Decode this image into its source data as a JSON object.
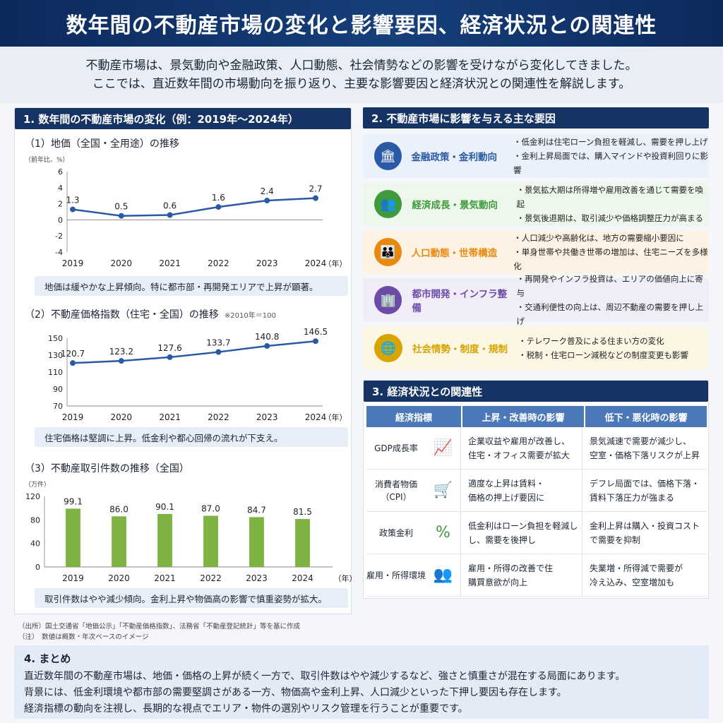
{
  "header": {
    "title": "数年間の不動産市場の変化と影響要因、経済状況との関連性",
    "intro_line1": "不動産市場は、景気動向や金融政策、人口動態、社会情勢などの影響を受けながら変化してきました。",
    "intro_line2": "ここでは、直近数年間の市場動向を振り返り、主要な影響要因と経済状況との関連性を解説します。"
  },
  "section1": {
    "heading": "1. 数年間の不動産市場の変化（例：2019年〜2024年）",
    "chart1": {
      "title": "（1）地価（全国・全用途）の推移",
      "unit": "（前年比、%）",
      "caption": "地価は緩やかな上昇傾向。特に都市部・再開発エリアで上昇が顕著。"
    },
    "chart2": {
      "title": "（2）不動産価格指数（住宅・全国）の推移",
      "note": "※2010年＝100",
      "caption": "住宅価格は堅調に上昇。低金利や都心回帰の流れが下支え。"
    },
    "chart3": {
      "title": "（3）不動産取引件数の推移（全国）",
      "unit": "（万件）",
      "caption": "取引件数はやや減少傾向。金利上昇や物価高の影響で慎重姿勢が拡大。"
    },
    "year_suffix": "（年）"
  },
  "chart_data": [
    {
      "type": "line",
      "title": "（1）地価（全国・全用途）の推移",
      "ylabel": "（前年比、%）",
      "xlabel": "（年）",
      "x": [
        "2019",
        "2020",
        "2021",
        "2022",
        "2023",
        "2024"
      ],
      "values": [
        1.3,
        0.5,
        0.6,
        1.6,
        2.4,
        2.7
      ],
      "ylim": [
        -4,
        6
      ],
      "yticks": [
        -4,
        -2,
        0,
        2,
        4,
        6
      ],
      "color": "#2a5aa4"
    },
    {
      "type": "line",
      "title": "（2）不動産価格指数（住宅・全国）の推移",
      "xlabel": "（年）",
      "x": [
        "2019",
        "2020",
        "2021",
        "2022",
        "2023",
        "2024"
      ],
      "values": [
        120.7,
        123.2,
        127.6,
        133.7,
        140.8,
        146.5
      ],
      "ylim": [
        70,
        150
      ],
      "yticks": [
        70,
        90,
        110,
        130,
        150
      ],
      "color": "#2a5aa4"
    },
    {
      "type": "bar",
      "title": "（3）不動産取引件数の推移（全国）",
      "ylabel": "（万件）",
      "xlabel": "（年）",
      "categories": [
        "2019",
        "2020",
        "2021",
        "2022",
        "2023",
        "2024"
      ],
      "values": [
        99.1,
        86.0,
        90.1,
        87.0,
        84.7,
        81.5
      ],
      "ylim": [
        0,
        120
      ],
      "yticks": [
        0,
        40,
        80,
        120
      ],
      "color": "#7cb342"
    }
  ],
  "section2": {
    "heading": "2. 不動産市場に影響を与える主な要因",
    "factors": [
      {
        "name": "金融政策・金利動向",
        "icon": "bank-icon",
        "glyph": "🏛",
        "color": "#2a5aa4",
        "bg": "#eaf1fa",
        "d1": "・低金利は住宅ローン負担を軽減し、需要を押し上げ",
        "d2": "・金利上昇局面では、購入マインドや投資利回りに影響"
      },
      {
        "name": "経済成長・景気動向",
        "icon": "people-group-icon",
        "glyph": "👥",
        "color": "#3d9a3d",
        "bg": "#eef7ec",
        "d1": "・景気拡大期は所得増や雇用改善を通じて需要を喚起",
        "d2": "・景気後退期は、取引減少や価格調整圧力が高まる"
      },
      {
        "name": "人口動態・世帯構造",
        "icon": "population-icon",
        "glyph": "👪",
        "color": "#e8890c",
        "bg": "#fdf2e4",
        "d1": "・人口減少や高齢化は、地方の需要縮小要因に",
        "d2": "・単身世帯や共働き世帯の増加は、住宅ニーズを多様化"
      },
      {
        "name": "都市開発・インフラ整備",
        "icon": "buildings-icon",
        "glyph": "🏢",
        "color": "#6b4aa8",
        "bg": "#f1edf8",
        "d1": "・再開発やインフラ投資は、エリアの価値向上に寄与",
        "d2": "・交通利便性の向上は、周辺不動産の需要を押し上げ"
      },
      {
        "name": "社会情勢・制度・規制",
        "icon": "globe-icon",
        "glyph": "🌐",
        "color": "#d9a300",
        "bg": "#fcf7e4",
        "d1": "・テレワーク普及による住まい方の変化",
        "d2": "・税制・住宅ローン減税などの制度変更も影響"
      }
    ]
  },
  "section3": {
    "heading": "3. 経済状況との関連性",
    "col1": "経済指標",
    "col2": "上昇・改善時の影響",
    "col3": "低下・悪化時の影響",
    "rows": [
      {
        "ind": "GDP成長率",
        "icon": "growth-chart-icon",
        "glyph": "📈",
        "up1": "企業収益や雇用が改善し、",
        "up2": "住宅・オフィス需要が拡大",
        "down1": "景気減速で需要が減少し、",
        "down2": "空室・価格下落リスクが上昇"
      },
      {
        "ind": "消費者物価（CPI）",
        "icon": "cart-icon",
        "glyph": "🛒",
        "up1": "適度な上昇は賃料・",
        "up2": "価格の押上げ要因に",
        "down1": "デフレ局面では、価格下落・",
        "down2": "賃料下落圧力が強まる"
      },
      {
        "ind": "政策金利",
        "icon": "percent-icon",
        "glyph": "%",
        "up1": "低金利はローン負担を軽減し",
        "up2": "し、需要を後押し",
        "down1": "金利上昇は購入・投資コスト",
        "down2": "で需要を抑制"
      },
      {
        "ind": "雇用・所得環境",
        "icon": "workers-icon",
        "glyph": "👥",
        "up1": "雇用・所得の改善で住",
        "up2": "購買意欲が向上",
        "down1": "失業増・所得減で需要が",
        "down2": "冷え込み、空室増加も"
      }
    ]
  },
  "source": {
    "line1": "（出所）国土交通省「地価公示」「不動産価格指数」、法務省「不動産登記統計」等を基に作成",
    "line2": "（注）　数値は概数・年次ベースのイメージ"
  },
  "summary": {
    "heading": "4. まとめ",
    "p1": "直近数年間の不動産市場は、地価・価格の上昇が続く一方で、取引件数はやや減少するなど、強さと慎重さが混在する局面にあります。",
    "p2": "背景には、低金利環境や都市部の需要堅調さがある一方、物価高や金利上昇、人口減少といった下押し要因も存在します。",
    "p3": "経済指標の動向を注視し、長期的な視点でエリア・物件の選別やリスク管理を行うことが重要です。"
  }
}
